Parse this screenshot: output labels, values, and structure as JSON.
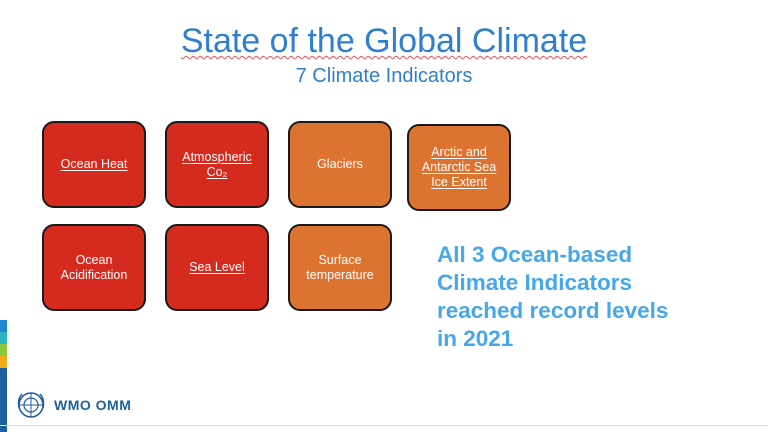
{
  "slide": {
    "title": "State of the Global Climate",
    "subtitle": "7 Climate Indicators",
    "tiles": [
      {
        "label": "Ocean Heat",
        "color": "#d52b1e"
      },
      {
        "label": "Atmospheric\nCo₂",
        "color": "#d52b1e"
      },
      {
        "label": "Glaciers",
        "color": "#dd7330"
      },
      {
        "label": "Arctic and\nAntarctic Sea\nIce Extent",
        "color": "#dd7330"
      },
      {
        "label": "Ocean\nAcidification",
        "color": "#d52b1e"
      },
      {
        "label": "Sea Level",
        "color": "#d52b1e"
      },
      {
        "label": "Surface\ntemperature",
        "color": "#dd7330"
      }
    ],
    "callout": {
      "line1": "All 3 Ocean-based",
      "line2": "Climate Indicators",
      "line3": "reached record levels",
      "line4": "in 2021",
      "color": "#46a7ea"
    },
    "logo_text": "WMO OMM",
    "accent_colors": [
      "#1e88d2",
      "#2bb3c5",
      "#8cc63f",
      "#f2a91c",
      "#1f5f9e"
    ]
  }
}
